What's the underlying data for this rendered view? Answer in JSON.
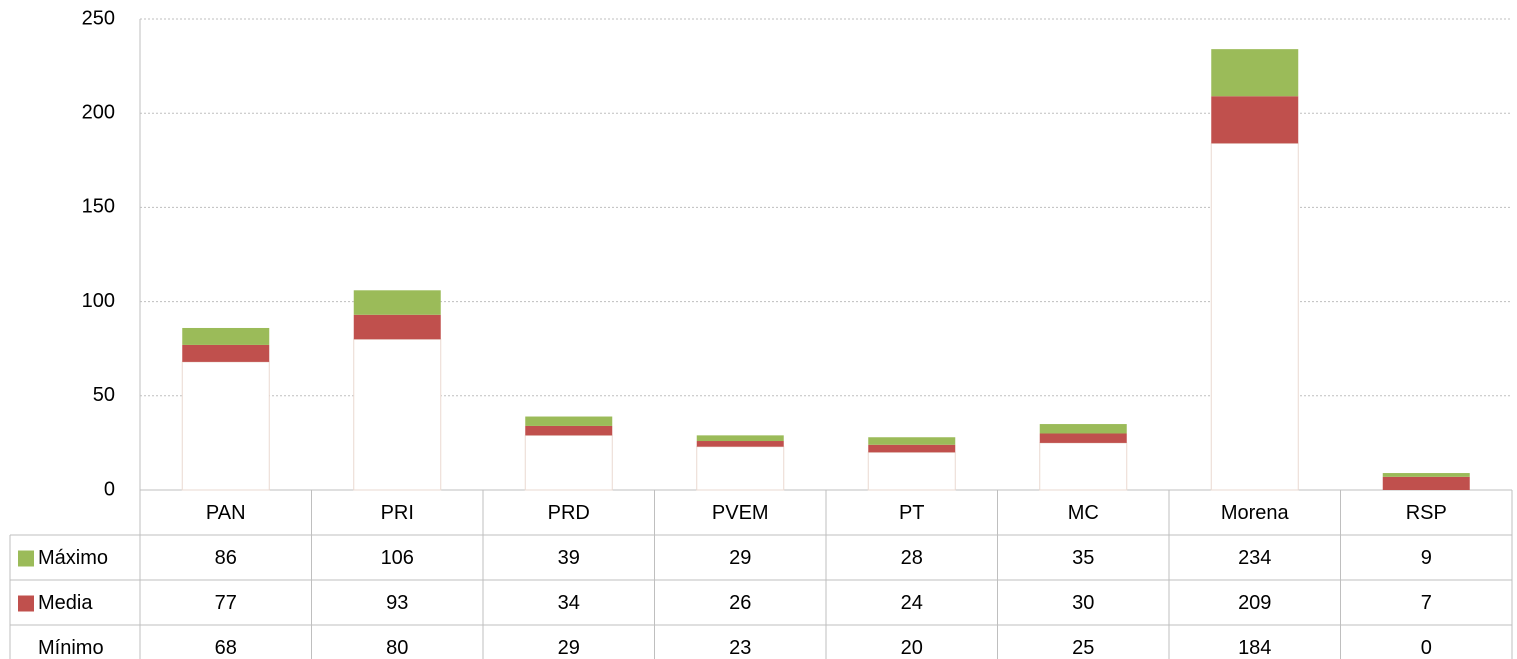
{
  "chart_data": {
    "type": "range",
    "categories": [
      "PAN",
      "PRI",
      "PRD",
      "PVEM",
      "PT",
      "MC",
      "Morena",
      "RSP"
    ],
    "series": [
      {
        "name": "Máximo",
        "color": "#9bbb59",
        "values": [
          86,
          106,
          39,
          29,
          28,
          35,
          234,
          9
        ]
      },
      {
        "name": "Media",
        "color": "#c0504d",
        "values": [
          77,
          93,
          34,
          26,
          24,
          30,
          209,
          7
        ]
      },
      {
        "name": "Mínimo",
        "color": "#ffffff",
        "values": [
          68,
          80,
          29,
          23,
          20,
          25,
          184,
          0
        ]
      }
    ],
    "ylim": [
      0,
      250
    ],
    "yticks": [
      0,
      50,
      100,
      150,
      200,
      250
    ],
    "grid": true
  }
}
